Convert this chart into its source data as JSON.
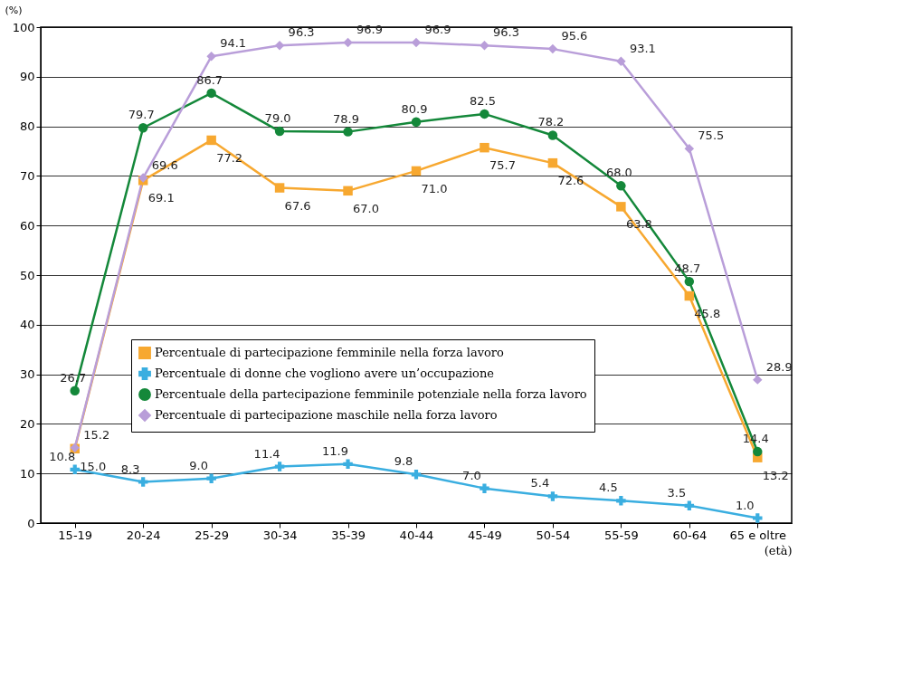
{
  "chart_data": {
    "type": "line",
    "ylabel": "(%)",
    "xlabel": "(età)",
    "categories": [
      "15-19",
      "20-24",
      "25-29",
      "30-34",
      "35-39",
      "40-44",
      "45-49",
      "50-54",
      "55-59",
      "60-64",
      "65 e oltre"
    ],
    "series": [
      {
        "name": "Percentuale di partecipazione femminile nella forza lavoro",
        "color": "#f7a830",
        "marker": "square",
        "values": [
          15.0,
          69.1,
          77.2,
          67.6,
          67.0,
          71.0,
          75.7,
          72.6,
          63.8,
          45.8,
          13.2
        ],
        "value_labels": [
          "15.0",
          "69.1",
          "77.2",
          "67.6",
          "67.0",
          "71.0",
          "75.7",
          "72.6",
          "63.8",
          "45.8",
          "13.2"
        ]
      },
      {
        "name": "Percentuale di donne che vogliono avere un’occupazione",
        "color": "#3aaee0",
        "marker": "cross",
        "values": [
          10.8,
          8.3,
          9.0,
          11.4,
          11.9,
          9.8,
          7.0,
          5.4,
          4.5,
          3.5,
          1.0
        ],
        "value_labels": [
          "10.8",
          "8.3",
          "9.0",
          "11.4",
          "11.9",
          "9.8",
          "7.0",
          "5.4",
          "4.5",
          "3.5",
          "1.0"
        ]
      },
      {
        "name": "Percentuale della partecipazione femminile potenziale nella forza lavoro",
        "color": "#14883a",
        "marker": "circle",
        "values": [
          26.7,
          79.7,
          86.7,
          79.0,
          78.9,
          80.9,
          82.5,
          78.2,
          68.0,
          48.7,
          14.4
        ],
        "value_labels": [
          "26.7",
          "79.7",
          "86.7",
          "79.0",
          "78.9",
          "80.9",
          "82.5",
          "78.2",
          "68.0",
          "48.7",
          "14.4"
        ]
      },
      {
        "name": "Percentuale di partecipazione maschile nella forza lavoro",
        "color": "#b99ed9",
        "marker": "diamond",
        "values": [
          15.2,
          69.6,
          94.1,
          96.3,
          96.9,
          96.9,
          96.3,
          95.6,
          93.1,
          75.5,
          28.9
        ],
        "value_labels": [
          "15.2",
          "69.6",
          "94.1",
          "96.3",
          "96.9",
          "96.9",
          "96.3",
          "95.6",
          "93.1",
          "75.5",
          "28.9"
        ]
      }
    ],
    "ylim": [
      0,
      100
    ],
    "yticks": [
      0,
      10,
      20,
      30,
      40,
      50,
      60,
      70,
      80,
      90,
      100
    ],
    "grid": "y",
    "legend": "left",
    "line_style": "solid"
  }
}
